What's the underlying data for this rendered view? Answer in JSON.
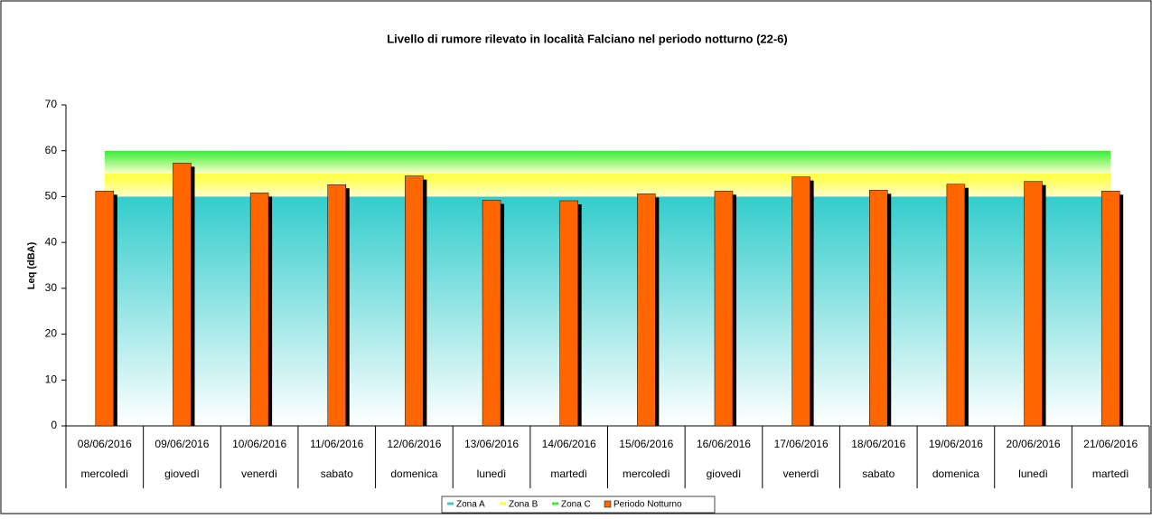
{
  "chart_data": {
    "type": "bar",
    "title": "Livello di rumore rilevato in località  Falciano nel periodo notturno (22-6)",
    "y_label": "Leq (dBA)",
    "categories": [
      "08/06/2016",
      "09/06/2016",
      "10/06/2016",
      "11/06/2016",
      "12/06/2016",
      "13/06/2016",
      "14/06/2016",
      "15/06/2016",
      "16/06/2016",
      "17/06/2016",
      "18/06/2016",
      "19/06/2016",
      "20/06/2016",
      "21/06/2016"
    ],
    "weekdays": [
      "mercoledì",
      "giovedì",
      "venerdì",
      "sabato",
      "domenica",
      "lunedì",
      "martedì",
      "mercoledì",
      "giovedì",
      "venerdì",
      "sabato",
      "domenica",
      "lunedì",
      "martedì"
    ],
    "ylim": [
      0,
      70
    ],
    "yticks": [
      0,
      10,
      20,
      30,
      40,
      50,
      60,
      70
    ],
    "series": [
      {
        "name": "Zona A",
        "type": "area",
        "stacked": true,
        "color": "#33cccc",
        "values": [
          50,
          50,
          50,
          50,
          50,
          50,
          50,
          50,
          50,
          50,
          50,
          50,
          50,
          50
        ]
      },
      {
        "name": "Zona B",
        "type": "area",
        "stacked": true,
        "color": "#ffff33",
        "values": [
          5,
          5,
          5,
          5,
          5,
          5,
          5,
          5,
          5,
          5,
          5,
          5,
          5,
          5
        ]
      },
      {
        "name": "Zona C",
        "type": "area",
        "stacked": true,
        "color": "#33ee33",
        "values": [
          5,
          5,
          5,
          5,
          5,
          5,
          5,
          5,
          5,
          5,
          5,
          5,
          5,
          5
        ]
      },
      {
        "name": "Periodo Notturno",
        "type": "bar",
        "color": "#ff6600",
        "values": [
          51.2,
          57.3,
          50.8,
          52.6,
          54.5,
          49.2,
          49.1,
          50.6,
          51.2,
          54.3,
          51.4,
          52.7,
          53.3,
          51.2
        ]
      }
    ]
  }
}
